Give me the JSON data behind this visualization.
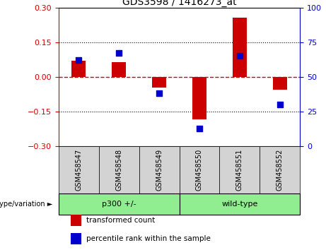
{
  "title": "GDS3598 / 1416273_at",
  "samples": [
    "GSM458547",
    "GSM458548",
    "GSM458549",
    "GSM458550",
    "GSM458551",
    "GSM458552"
  ],
  "red_values": [
    0.07,
    0.065,
    -0.045,
    -0.185,
    0.255,
    -0.055
  ],
  "blue_values_pct": [
    62,
    67,
    38,
    13,
    65,
    30
  ],
  "group_split": 3,
  "group_labels": [
    "p300 +/-",
    "wild-type"
  ],
  "group_label_prefix": "genotype/variation ►",
  "ylim_left": [
    -0.3,
    0.3
  ],
  "ylim_right": [
    0,
    100
  ],
  "yticks_left": [
    -0.3,
    -0.15,
    0,
    0.15,
    0.3
  ],
  "yticks_right": [
    0,
    25,
    50,
    75,
    100
  ],
  "left_tick_color": "#cc0000",
  "right_tick_color": "#0000cc",
  "hline_color": "#cc0000",
  "dotted_lines": [
    -0.15,
    0.15
  ],
  "bar_color": "#cc0000",
  "dot_color": "#0000cc",
  "bar_width": 0.35,
  "dot_size": 40,
  "legend_items": [
    "transformed count",
    "percentile rank within the sample"
  ],
  "legend_colors": [
    "#cc0000",
    "#0000cc"
  ],
  "group_box_color": "#90EE90",
  "sample_box_color": "#d3d3d3",
  "sample_font_size": 7,
  "title_font_size": 10,
  "tick_font_size": 8,
  "group_font_size": 8,
  "legend_font_size": 7.5
}
